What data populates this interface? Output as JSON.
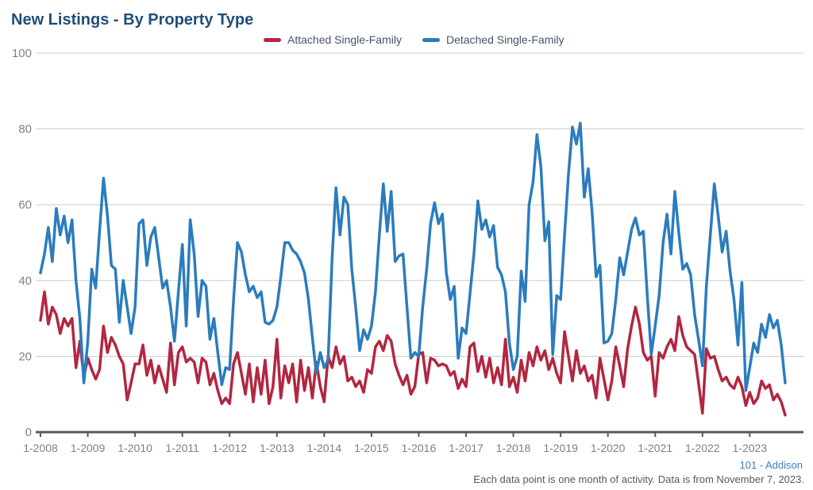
{
  "title": "New Listings - By Property Type",
  "legend": {
    "items": [
      {
        "label": "Attached Single-Family",
        "color": "#B22740"
      },
      {
        "label": "Detached Single-Family",
        "color": "#2B7CBE"
      }
    ],
    "position": "top"
  },
  "footer": {
    "attribution": "101 - Addison",
    "note": "Each data point is one month of activity. Data is from November 7, 2023."
  },
  "colors": {
    "title": "#1F4E79",
    "legend_text": "#44546A",
    "axis_label": "#808080",
    "gridline": "#CCCCCC",
    "axis_line": "#595959",
    "attached_series": "#B22740",
    "detached_series": "#2B7CBE",
    "attribution": "#3F7FBF",
    "note": "#595959"
  },
  "chart_data": {
    "type": "line",
    "title": "New Listings - By Property Type",
    "xlabel": "",
    "ylabel": "",
    "ylim": [
      0,
      100
    ],
    "y_ticks": [
      0,
      20,
      40,
      60,
      80,
      100
    ],
    "grid": "horizontal",
    "legend_position": "top",
    "x_start": "2008-01",
    "x_end": "2023-10",
    "points_per_year": 12,
    "months_total": 190,
    "x_tick_every_months": 12,
    "x_tick_labels": [
      "1-2008",
      "1-2009",
      "1-2010",
      "1-2011",
      "1-2012",
      "1-2013",
      "1-2014",
      "1-2015",
      "1-2016",
      "1-2017",
      "1-2018",
      "1-2019",
      "1-2020",
      "1-2021",
      "1-2022",
      "1-2023"
    ],
    "series": [
      {
        "name": "Attached Single-Family",
        "color": "#B22740",
        "values": [
          29.5,
          37,
          28.5,
          33,
          31,
          26,
          30,
          28,
          30,
          17,
          24,
          14.5,
          19.5,
          16.5,
          14,
          16.5,
          28,
          21,
          25,
          23,
          20,
          18,
          8.5,
          13,
          18,
          18,
          23,
          15,
          19,
          13,
          17.5,
          14,
          10.5,
          23.5,
          12.5,
          21,
          22.5,
          18.5,
          19.5,
          18.5,
          13,
          19.5,
          18.5,
          12.5,
          15.5,
          11,
          7.5,
          9,
          7.5,
          18,
          21,
          15.5,
          10,
          18,
          8,
          17,
          10,
          19,
          7.5,
          12,
          24.5,
          9,
          17.5,
          13,
          18,
          8,
          19,
          11,
          17,
          9,
          18.5,
          12,
          8,
          20,
          17,
          22.5,
          18,
          20,
          13.5,
          14.5,
          12,
          13.5,
          10.5,
          16.5,
          15.5,
          22.5,
          24,
          21.5,
          25.5,
          24,
          18,
          15,
          12.5,
          15,
          10,
          12,
          20.5,
          21,
          13,
          19.5,
          19,
          17.5,
          18,
          17.5,
          15,
          16,
          11.5,
          14,
          12,
          22.5,
          23.5,
          16,
          20,
          14.5,
          19.5,
          13,
          17,
          12.5,
          24.5,
          12,
          14.5,
          10.5,
          19,
          13.5,
          21,
          17.5,
          22.5,
          19,
          21.5,
          16.5,
          19.5,
          15.5,
          13,
          26.5,
          20,
          13.5,
          21.5,
          15.5,
          17.5,
          13.5,
          15,
          9,
          19.5,
          14,
          8.5,
          13.5,
          22.5,
          17.5,
          12,
          22,
          28,
          33,
          28.5,
          21,
          19,
          20,
          9.5,
          21,
          19.5,
          22.5,
          24.5,
          21.5,
          30.5,
          25.5,
          22.5,
          21.5,
          20.5,
          13,
          5,
          22,
          19.5,
          20,
          16.5,
          13.5,
          14.5,
          12.5,
          11.5,
          14.5,
          12,
          7,
          10.5,
          7.5,
          9,
          13.5,
          11.5,
          12.5,
          8.5,
          10,
          8,
          4.5
        ]
      },
      {
        "name": "Detached Single-Family",
        "color": "#2B7CBE",
        "values": [
          42,
          47,
          54,
          45,
          59,
          52,
          57,
          50,
          56,
          40,
          30,
          13,
          24,
          43,
          38,
          53,
          67,
          57,
          44,
          43,
          29,
          40,
          33,
          26,
          33,
          55,
          56,
          44,
          51.5,
          54,
          46,
          38,
          40,
          33,
          24,
          37,
          49.5,
          28,
          56,
          47,
          30.5,
          40,
          38.5,
          24.5,
          30,
          21,
          12.5,
          17,
          16.5,
          35,
          50,
          47.5,
          41.5,
          37,
          38.5,
          35.5,
          37,
          29,
          28.5,
          29.5,
          33,
          41,
          50,
          50,
          48,
          47,
          45,
          42,
          35,
          25,
          15.5,
          21,
          17,
          19,
          46,
          64.5,
          52,
          62,
          60,
          43,
          33,
          21.5,
          27,
          24.5,
          28,
          37,
          52,
          65.5,
          53,
          63.5,
          45,
          46.5,
          47,
          33,
          19.5,
          21,
          20,
          33,
          43,
          55,
          60.5,
          55,
          57.5,
          42,
          35,
          38.5,
          19.5,
          27.5,
          26,
          36.5,
          47,
          61,
          53.5,
          56,
          51.5,
          54.5,
          43.5,
          41.5,
          37,
          23.5,
          16.5,
          20,
          42.5,
          34.5,
          60,
          66,
          78.5,
          70,
          50.5,
          55.5,
          20.5,
          36,
          35,
          52,
          68,
          80.5,
          76,
          81.5,
          62,
          69.5,
          58,
          41,
          44,
          23.5,
          24,
          26,
          35,
          46,
          41.5,
          47.5,
          53.5,
          56.5,
          52,
          53,
          36,
          20.5,
          28,
          36,
          50,
          57.5,
          47,
          63.5,
          52.5,
          43,
          44.5,
          41.5,
          31,
          24.5,
          17.5,
          38.5,
          52,
          65.5,
          57,
          47.5,
          53,
          42.5,
          35,
          23,
          39.5,
          11,
          17,
          23.5,
          21,
          28.5,
          25,
          31,
          27.5,
          29.5,
          23,
          13
        ]
      }
    ]
  }
}
